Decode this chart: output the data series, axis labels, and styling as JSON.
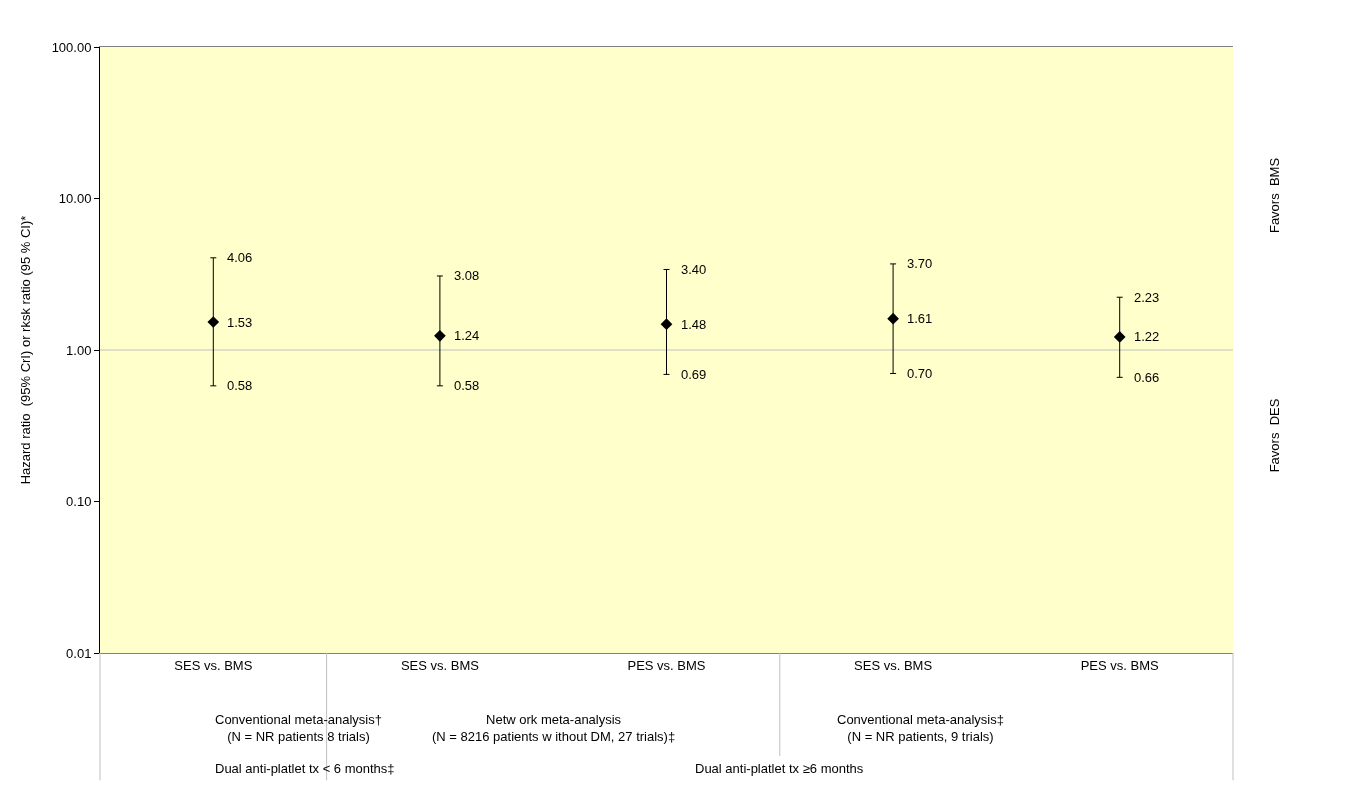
{
  "chart_data": {
    "type": "scatter",
    "ylabel": "Hazard ratio  (95% CrI) or rksk ratio (95 % CI)*",
    "categories": [
      "SES vs. BMS",
      "SES vs. BMS",
      "PES vs. BMS",
      "SES vs. BMS",
      "PES vs. BMS"
    ],
    "series": [
      {
        "color": "#000000",
        "values": [
          1.53,
          1.24,
          1.48,
          1.61,
          1.22
        ],
        "errors": [
          [
            0.58,
            4.06
          ],
          [
            0.58,
            3.08
          ],
          [
            0.69,
            3.4
          ],
          [
            0.7,
            3.7
          ],
          [
            0.66,
            2.23
          ]
        ]
      }
    ],
    "value_labels": [
      "1.53",
      "1.24",
      "1.48",
      "1.61",
      "1.22"
    ],
    "log": "y",
    "ylim": [
      0.01,
      100
    ],
    "yticks": [
      {
        "value": 0.01,
        "label": "0.01"
      },
      {
        "value": 0.1,
        "label": "0.10"
      },
      {
        "value": 1,
        "label": "1.00"
      },
      {
        "value": 10,
        "label": "10.00"
      },
      {
        "value": 100,
        "label": "100.00"
      }
    ],
    "marker": "diamond",
    "grid": false,
    "legend": false,
    "ref_lines": [
      {
        "axis": "y",
        "value": 1,
        "color": "#c0c0c0"
      }
    ],
    "annotations": [
      "Conventional meta-analysis†\n(N = NR patients 8 trials)",
      "Netw ork meta-analysis\n(N = 8216 patients w ithout DM, 27 trials)‡",
      "Conventional meta-analysis‡\n(N = NR patients, 9 trials)",
      "Dual anti-platlet tx < 6 months‡",
      "Dual anti-platlet tx ≥6 months",
      "Favors  BMS",
      "Favors  DES",
      "0.58",
      "4.06",
      "0.58",
      "3.08",
      "0.69",
      "3.40",
      "0.70",
      "3.70",
      "0.66",
      "2.23"
    ]
  }
}
